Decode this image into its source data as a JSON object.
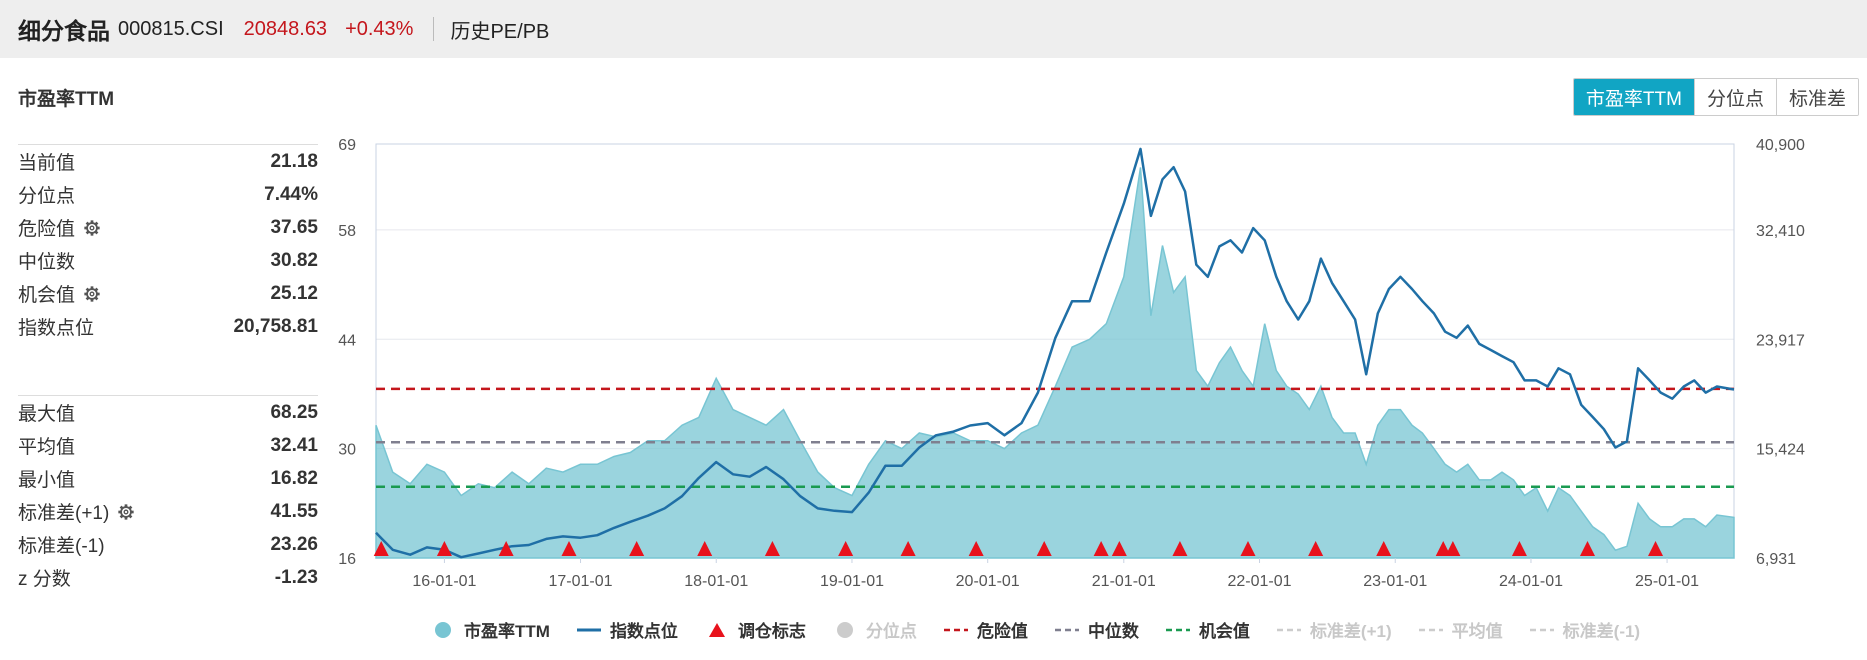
{
  "header": {
    "name": "细分食品",
    "code": "000815.CSI",
    "price": "20848.63",
    "change": "+0.43%",
    "type": "历史PE/PB"
  },
  "section_title": "市盈率TTM",
  "tabs": [
    "市盈率TTM",
    "分位点",
    "标准差"
  ],
  "stats_a": [
    {
      "label": "当前值",
      "value": "21.18",
      "gear": false
    },
    {
      "label": "分位点",
      "value": "7.44%",
      "gear": false
    },
    {
      "label": "危险值",
      "value": "37.65",
      "gear": true
    },
    {
      "label": "中位数",
      "value": "30.82",
      "gear": false
    },
    {
      "label": "机会值",
      "value": "25.12",
      "gear": true
    },
    {
      "label": "指数点位",
      "value": "20,758.81",
      "gear": false
    }
  ],
  "stats_b": [
    {
      "label": "最大值",
      "value": "68.25",
      "gear": false
    },
    {
      "label": "平均值",
      "value": "32.41",
      "gear": false
    },
    {
      "label": "最小值",
      "value": "16.82",
      "gear": false
    },
    {
      "label": "标准差(+1)",
      "value": "41.55",
      "gear": true
    },
    {
      "label": "标准差(-1)",
      "value": "23.26",
      "gear": false
    },
    {
      "label": "z 分数",
      "value": "-1.23",
      "gear": false
    }
  ],
  "legend": [
    {
      "label": "市盈率TTM",
      "kind": "dot",
      "color": "#78c5d3",
      "dim": false
    },
    {
      "label": "指数点位",
      "kind": "line",
      "color": "#1f6fa6",
      "dim": false
    },
    {
      "label": "调仓标志",
      "kind": "tri",
      "color": "#e8121c",
      "dim": false
    },
    {
      "label": "分位点",
      "kind": "dot",
      "color": "#cccccc",
      "dim": true
    },
    {
      "label": "危险值",
      "kind": "dash",
      "color": "#c4161c",
      "dim": false
    },
    {
      "label": "中位数",
      "kind": "dash",
      "color": "#7f7f8f",
      "dim": false
    },
    {
      "label": "机会值",
      "kind": "dash",
      "color": "#1a9a50",
      "dim": false
    },
    {
      "label": "标准差(+1)",
      "kind": "dash",
      "color": "#cccccc",
      "dim": true
    },
    {
      "label": "平均值",
      "kind": "dash",
      "color": "#cccccc",
      "dim": true
    },
    {
      "label": "标准差(-1)",
      "kind": "dash",
      "color": "#cccccc",
      "dim": true
    }
  ],
  "colors": {
    "area": "#78c5d3",
    "index": "#1f6fa6",
    "danger": "#c4161c",
    "median": "#7f7f8f",
    "chance": "#1a9a50",
    "marker": "#e8121c",
    "accent": "#11a5c4"
  },
  "chart_data": {
    "type": "area",
    "x_start": "2015-07-01",
    "x_end": "2025-06-30",
    "x_ticks": [
      "16-01-01",
      "17-01-01",
      "18-01-01",
      "19-01-01",
      "20-01-01",
      "21-01-01",
      "22-01-01",
      "23-01-01",
      "24-01-01",
      "25-01-01"
    ],
    "y_left": {
      "min": 16,
      "max": 69,
      "ticks": [
        16,
        30,
        44,
        58,
        69
      ]
    },
    "y_right": {
      "min": 6931,
      "max": 40900,
      "ticks": [
        "6,931",
        "15,424",
        "23,917",
        "32,410",
        "40,900"
      ]
    },
    "reference_lines": [
      {
        "name": "危险值",
        "value": 37.65
      },
      {
        "name": "中位数",
        "value": 30.82
      },
      {
        "name": "机会值",
        "value": 25.12
      }
    ],
    "series": [
      {
        "name": "市盈率TTM",
        "axis": "left",
        "points": [
          [
            "2015-07-01",
            33
          ],
          [
            "2015-08-15",
            27
          ],
          [
            "2015-10-01",
            25.5
          ],
          [
            "2015-11-15",
            28
          ],
          [
            "2016-01-01",
            27
          ],
          [
            "2016-02-15",
            24
          ],
          [
            "2016-04-01",
            25.5
          ],
          [
            "2016-05-15",
            25
          ],
          [
            "2016-07-01",
            27
          ],
          [
            "2016-08-15",
            25.5
          ],
          [
            "2016-10-01",
            27.5
          ],
          [
            "2016-11-15",
            27
          ],
          [
            "2017-01-01",
            28
          ],
          [
            "2017-02-15",
            28
          ],
          [
            "2017-04-01",
            29
          ],
          [
            "2017-05-15",
            29.5
          ],
          [
            "2017-07-01",
            31
          ],
          [
            "2017-08-15",
            31
          ],
          [
            "2017-10-01",
            33
          ],
          [
            "2017-11-15",
            34
          ],
          [
            "2018-01-01",
            39
          ],
          [
            "2018-02-15",
            35
          ],
          [
            "2018-04-01",
            34
          ],
          [
            "2018-05-15",
            33
          ],
          [
            "2018-07-01",
            35
          ],
          [
            "2018-08-15",
            31
          ],
          [
            "2018-10-01",
            27
          ],
          [
            "2018-11-15",
            25
          ],
          [
            "2019-01-01",
            24
          ],
          [
            "2019-02-15",
            28
          ],
          [
            "2019-04-01",
            31
          ],
          [
            "2019-05-15",
            30
          ],
          [
            "2019-07-01",
            32
          ],
          [
            "2019-08-15",
            31.5
          ],
          [
            "2019-10-01",
            32
          ],
          [
            "2019-11-15",
            31
          ],
          [
            "2020-01-01",
            31
          ],
          [
            "2020-02-15",
            30
          ],
          [
            "2020-04-01",
            32
          ],
          [
            "2020-05-15",
            33
          ],
          [
            "2020-07-01",
            38
          ],
          [
            "2020-08-15",
            43
          ],
          [
            "2020-10-01",
            44
          ],
          [
            "2020-11-15",
            46
          ],
          [
            "2021-01-01",
            52
          ],
          [
            "2021-02-15",
            66
          ],
          [
            "2021-03-15",
            47
          ],
          [
            "2021-04-15",
            56
          ],
          [
            "2021-05-15",
            50
          ],
          [
            "2021-06-15",
            52
          ],
          [
            "2021-07-15",
            40
          ],
          [
            "2021-08-15",
            38
          ],
          [
            "2021-09-15",
            41
          ],
          [
            "2021-10-15",
            43
          ],
          [
            "2021-11-15",
            40
          ],
          [
            "2021-12-15",
            38
          ],
          [
            "2022-01-15",
            46
          ],
          [
            "2022-02-15",
            40
          ],
          [
            "2022-03-15",
            38
          ],
          [
            "2022-04-15",
            37
          ],
          [
            "2022-05-15",
            35
          ],
          [
            "2022-06-15",
            38
          ],
          [
            "2022-07-15",
            34
          ],
          [
            "2022-08-15",
            32
          ],
          [
            "2022-09-15",
            32
          ],
          [
            "2022-10-15",
            28
          ],
          [
            "2022-11-15",
            33
          ],
          [
            "2022-12-15",
            35
          ],
          [
            "2023-01-15",
            35
          ],
          [
            "2023-02-15",
            33
          ],
          [
            "2023-03-15",
            32
          ],
          [
            "2023-04-15",
            30
          ],
          [
            "2023-05-15",
            28
          ],
          [
            "2023-06-15",
            27
          ],
          [
            "2023-07-15",
            28
          ],
          [
            "2023-08-15",
            26
          ],
          [
            "2023-09-15",
            26
          ],
          [
            "2023-10-15",
            27
          ],
          [
            "2023-11-15",
            26
          ],
          [
            "2023-12-15",
            24
          ],
          [
            "2024-01-15",
            25
          ],
          [
            "2024-02-15",
            22
          ],
          [
            "2024-03-15",
            25
          ],
          [
            "2024-04-15",
            24
          ],
          [
            "2024-05-15",
            22
          ],
          [
            "2024-06-15",
            20
          ],
          [
            "2024-07-15",
            19
          ],
          [
            "2024-08-15",
            17
          ],
          [
            "2024-09-15",
            17.5
          ],
          [
            "2024-10-15",
            23
          ],
          [
            "2024-11-15",
            21
          ],
          [
            "2024-12-15",
            20
          ],
          [
            "2025-01-15",
            20
          ],
          [
            "2025-02-15",
            21
          ],
          [
            "2025-03-15",
            21
          ],
          [
            "2025-04-15",
            20
          ],
          [
            "2025-05-15",
            21.5
          ],
          [
            "2025-06-30",
            21.2
          ]
        ]
      },
      {
        "name": "指数点位",
        "axis": "right",
        "points": [
          [
            "2015-07-01",
            9000
          ],
          [
            "2015-08-15",
            7600
          ],
          [
            "2015-10-01",
            7200
          ],
          [
            "2015-11-15",
            7800
          ],
          [
            "2016-01-01",
            7600
          ],
          [
            "2016-02-15",
            7000
          ],
          [
            "2016-04-01",
            7300
          ],
          [
            "2016-05-15",
            7600
          ],
          [
            "2016-07-01",
            7900
          ],
          [
            "2016-08-15",
            8000
          ],
          [
            "2016-10-01",
            8500
          ],
          [
            "2016-11-15",
            8700
          ],
          [
            "2017-01-01",
            8600
          ],
          [
            "2017-02-15",
            8800
          ],
          [
            "2017-04-01",
            9400
          ],
          [
            "2017-05-15",
            9900
          ],
          [
            "2017-07-01",
            10400
          ],
          [
            "2017-08-15",
            11000
          ],
          [
            "2017-10-01",
            12000
          ],
          [
            "2017-11-15",
            13500
          ],
          [
            "2018-01-01",
            14800
          ],
          [
            "2018-02-15",
            13800
          ],
          [
            "2018-04-01",
            13600
          ],
          [
            "2018-05-15",
            14400
          ],
          [
            "2018-07-01",
            13400
          ],
          [
            "2018-08-15",
            12000
          ],
          [
            "2018-10-01",
            11000
          ],
          [
            "2018-11-15",
            10800
          ],
          [
            "2019-01-01",
            10700
          ],
          [
            "2019-02-15",
            12300
          ],
          [
            "2019-04-01",
            14500
          ],
          [
            "2019-05-15",
            14500
          ],
          [
            "2019-07-01",
            16000
          ],
          [
            "2019-08-15",
            17000
          ],
          [
            "2019-10-01",
            17300
          ],
          [
            "2019-11-15",
            17800
          ],
          [
            "2020-01-01",
            18000
          ],
          [
            "2020-02-15",
            17000
          ],
          [
            "2020-04-01",
            18000
          ],
          [
            "2020-05-15",
            20500
          ],
          [
            "2020-07-01",
            25000
          ],
          [
            "2020-08-15",
            28000
          ],
          [
            "2020-10-01",
            28000
          ],
          [
            "2020-11-15",
            32000
          ],
          [
            "2021-01-01",
            36000
          ],
          [
            "2021-02-15",
            40500
          ],
          [
            "2021-03-15",
            35000
          ],
          [
            "2021-04-15",
            38000
          ],
          [
            "2021-05-15",
            39000
          ],
          [
            "2021-06-15",
            37000
          ],
          [
            "2021-07-15",
            31000
          ],
          [
            "2021-08-15",
            30000
          ],
          [
            "2021-09-15",
            32500
          ],
          [
            "2021-10-15",
            33000
          ],
          [
            "2021-11-15",
            32000
          ],
          [
            "2021-12-15",
            34000
          ],
          [
            "2022-01-15",
            33000
          ],
          [
            "2022-02-15",
            30000
          ],
          [
            "2022-03-15",
            28000
          ],
          [
            "2022-04-15",
            26500
          ],
          [
            "2022-05-15",
            28000
          ],
          [
            "2022-06-15",
            31500
          ],
          [
            "2022-07-15",
            29500
          ],
          [
            "2022-08-15",
            28000
          ],
          [
            "2022-09-15",
            26500
          ],
          [
            "2022-10-15",
            22000
          ],
          [
            "2022-11-15",
            27000
          ],
          [
            "2022-12-15",
            29000
          ],
          [
            "2023-01-15",
            30000
          ],
          [
            "2023-02-15",
            29000
          ],
          [
            "2023-03-15",
            28000
          ],
          [
            "2023-04-15",
            27000
          ],
          [
            "2023-05-15",
            25500
          ],
          [
            "2023-06-15",
            25000
          ],
          [
            "2023-07-15",
            26000
          ],
          [
            "2023-08-15",
            24500
          ],
          [
            "2023-09-15",
            24000
          ],
          [
            "2023-10-15",
            23500
          ],
          [
            "2023-11-15",
            23000
          ],
          [
            "2023-12-15",
            21500
          ],
          [
            "2024-01-15",
            21500
          ],
          [
            "2024-02-15",
            21000
          ],
          [
            "2024-03-15",
            22500
          ],
          [
            "2024-04-15",
            22000
          ],
          [
            "2024-05-15",
            19500
          ],
          [
            "2024-06-15",
            18500
          ],
          [
            "2024-07-15",
            17500
          ],
          [
            "2024-08-15",
            16000
          ],
          [
            "2024-09-15",
            16500
          ],
          [
            "2024-10-15",
            22500
          ],
          [
            "2024-11-15",
            21500
          ],
          [
            "2024-12-15",
            20500
          ],
          [
            "2025-01-15",
            20000
          ],
          [
            "2025-02-15",
            21000
          ],
          [
            "2025-03-15",
            21500
          ],
          [
            "2025-04-15",
            20500
          ],
          [
            "2025-05-15",
            21000
          ],
          [
            "2025-06-30",
            20760
          ]
        ]
      }
    ],
    "rebalance_markers": [
      "2015-07-15",
      "2016-01-01",
      "2016-06-15",
      "2016-12-01",
      "2017-06-01",
      "2017-12-01",
      "2018-06-01",
      "2018-12-15",
      "2019-06-01",
      "2019-12-01",
      "2020-06-01",
      "2020-11-01",
      "2020-12-20",
      "2021-06-01",
      "2021-12-01",
      "2022-06-01",
      "2022-12-01",
      "2023-05-10",
      "2023-06-05",
      "2023-12-01",
      "2024-06-01",
      "2024-12-01"
    ]
  }
}
